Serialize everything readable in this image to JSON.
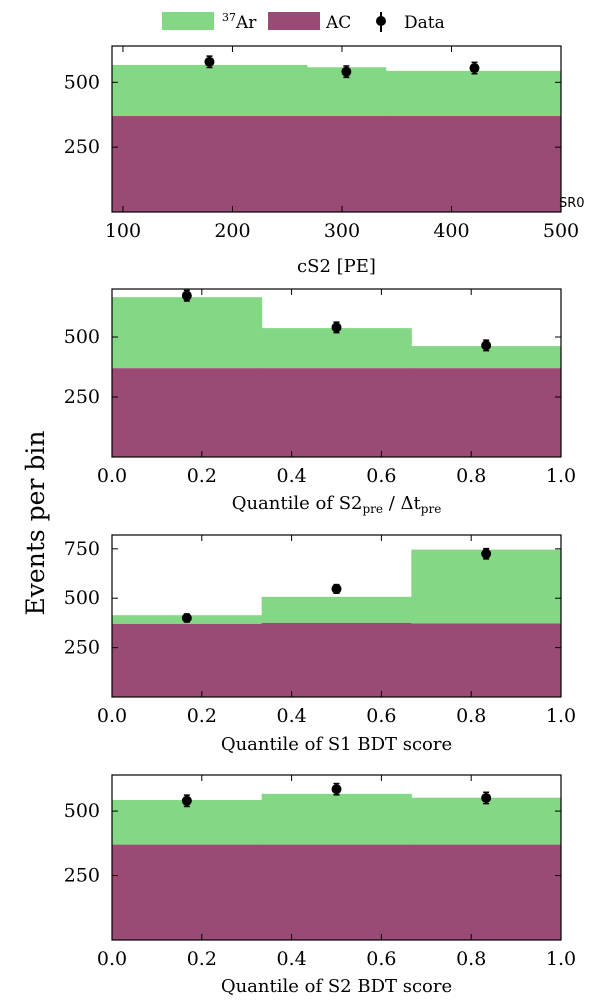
{
  "figure": {
    "y_label": "Events per bin",
    "colors": {
      "ar37": "#84d784",
      "ac": "#994a75",
      "data": "#000000"
    }
  },
  "legend": {
    "placement": "top-center",
    "entries": [
      {
        "key": "ar37",
        "sup": "37",
        "text": "Ar"
      },
      {
        "key": "ac",
        "sup": "",
        "text": "AC"
      },
      {
        "key": "data",
        "sup": "",
        "text": "Data"
      }
    ]
  },
  "chart_data": [
    {
      "type": "bar",
      "xlabel": "cS2 [PE]",
      "annotation": "SR0",
      "xlim": [
        90,
        500
      ],
      "ylim": [
        0,
        640
      ],
      "xticks": [
        100,
        200,
        300,
        400,
        500
      ],
      "yticks": [
        250,
        500
      ],
      "bin_edges": [
        90,
        268,
        340,
        500
      ],
      "series": [
        {
          "name": "AC",
          "values": [
            370,
            370,
            370
          ]
        },
        {
          "name": "37Ar",
          "values": [
            197,
            188,
            174
          ]
        }
      ],
      "data": {
        "name": "Data",
        "x": [
          179,
          304,
          421
        ],
        "y": [
          579,
          541,
          555
        ],
        "err": [
          22,
          22,
          22
        ]
      }
    },
    {
      "type": "bar",
      "xlabel": "Quantile of S2",
      "xlabel_sub1": "pre",
      "xlabel_mid": " / Δt",
      "xlabel_sub2": "pre",
      "xlim": [
        0.0,
        1.0
      ],
      "ylim": [
        0,
        700
      ],
      "xticks": [
        0.0,
        0.2,
        0.4,
        0.6,
        0.8,
        1.0
      ],
      "yticks": [
        250,
        500
      ],
      "bin_edges": [
        0.0,
        0.3333,
        0.6667,
        1.0
      ],
      "series": [
        {
          "name": "AC",
          "values": [
            370,
            370,
            370
          ]
        },
        {
          "name": "37Ar",
          "values": [
            296,
            167,
            92
          ]
        }
      ],
      "data": {
        "name": "Data",
        "x": [
          0.1667,
          0.5,
          0.8333
        ],
        "y": [
          672,
          540,
          465
        ],
        "err": [
          22,
          22,
          22
        ]
      }
    },
    {
      "type": "bar",
      "xlabel": "Quantile of S1 BDT score",
      "xlim": [
        0.0,
        1.0
      ],
      "ylim": [
        0,
        820
      ],
      "xticks": [
        0.0,
        0.2,
        0.4,
        0.6,
        0.8,
        1.0
      ],
      "yticks": [
        250,
        500,
        750
      ],
      "bin_edges": [
        0.0,
        0.3333,
        0.6667,
        1.0
      ],
      "series": [
        {
          "name": "AC",
          "values": [
            370,
            375,
            372
          ]
        },
        {
          "name": "37Ar",
          "values": [
            44,
            132,
            374
          ]
        }
      ],
      "data": {
        "name": "Data",
        "x": [
          0.1667,
          0.5,
          0.8333
        ],
        "y": [
          400,
          547,
          725
        ],
        "err": [
          20,
          22,
          26
        ]
      }
    },
    {
      "type": "bar",
      "xlabel": "Quantile of S2 BDT score",
      "xlim": [
        0.0,
        1.0
      ],
      "ylim": [
        0,
        640
      ],
      "xticks": [
        0.0,
        0.2,
        0.4,
        0.6,
        0.8,
        1.0
      ],
      "yticks": [
        250,
        500
      ],
      "bin_edges": [
        0.0,
        0.3333,
        0.6667,
        1.0
      ],
      "series": [
        {
          "name": "AC",
          "values": [
            370,
            370,
            370
          ]
        },
        {
          "name": "37Ar",
          "values": [
            173,
            197,
            182
          ]
        }
      ],
      "data": {
        "name": "Data",
        "x": [
          0.1667,
          0.5,
          0.8333
        ],
        "y": [
          540,
          585,
          551
        ],
        "err": [
          22,
          22,
          22
        ]
      }
    }
  ]
}
